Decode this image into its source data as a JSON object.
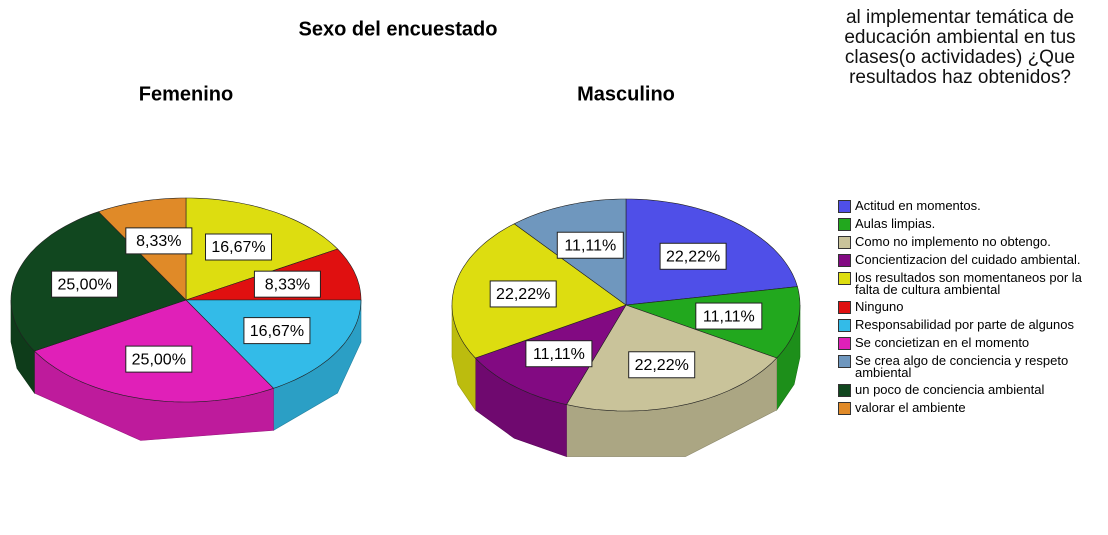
{
  "title": "Sexo del encuestado",
  "legend": {
    "title": "al implementar temática de educación ambiental en tus clases(o actividades) ¿Que resultados haz obtenidos?",
    "entries": [
      {
        "name": "Actitud en momentos.",
        "color": "#4f4fe8"
      },
      {
        "name": "Aulas limpias.",
        "color": "#22a81e"
      },
      {
        "name": "Como no implemento no obtengo.",
        "color": "#c9c39a"
      },
      {
        "name": "Concientizacion del cuidado ambiental.",
        "color": "#820a82"
      },
      {
        "name": "los resultados son momentaneos por la falta de cultura ambiental",
        "color": "#dddd10"
      },
      {
        "name": "Ninguno",
        "color": "#e01010"
      },
      {
        "name": "Responsabilidad por parte de algunos",
        "color": "#33bbe8"
      },
      {
        "name": "Se concietizan en el momento",
        "color": "#e020b8"
      },
      {
        "name": "Se crea algo de conciencia y respeto ambiental",
        "color": "#6f97be"
      },
      {
        "name": "un poco de conciencia ambiental",
        "color": "#11471f"
      },
      {
        "name": "valorar el  ambiente",
        "color": "#e08a28"
      }
    ]
  },
  "chart_data": [
    {
      "type": "pie",
      "title": "Femenino",
      "categories": [
        "los resultados son momentaneos por la falta de cultura ambiental",
        "Ninguno",
        "Responsabilidad por parte de algunos",
        "Se concietizan en el momento",
        "un poco de conciencia ambiental",
        "valorar el  ambiente"
      ],
      "values": [
        16.67,
        8.33,
        16.67,
        25.0,
        25.0,
        8.33
      ],
      "value_labels": [
        "16,67%",
        "8,33%",
        "16,67%",
        "25,00%",
        "25,00%",
        "8,33%"
      ]
    },
    {
      "type": "pie",
      "title": "Masculino",
      "categories": [
        "Actitud en momentos.",
        "Aulas limpias.",
        "Como no implemento no obtengo.",
        "Concientizacion del cuidado ambiental.",
        "los resultados son momentaneos por la falta de cultura ambiental",
        "Se crea algo de conciencia y respeto ambiental"
      ],
      "values": [
        22.22,
        11.11,
        22.22,
        11.11,
        22.22,
        11.11
      ],
      "value_labels": [
        "22,22%",
        "11,11%",
        "22,22%",
        "11,11%",
        "22,22%",
        "11,11%"
      ]
    }
  ]
}
